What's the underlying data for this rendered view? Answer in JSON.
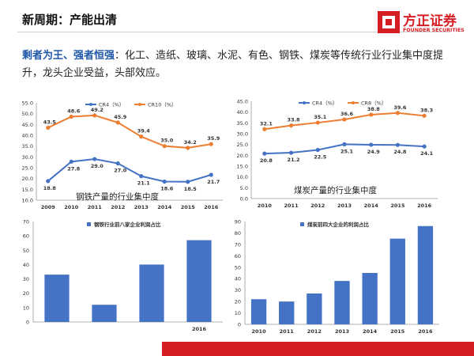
{
  "header": {
    "title": "新周期：产能出清"
  },
  "logo": {
    "cn": "方正证券",
    "en": "FOUNDER SECURITIES"
  },
  "paragraph": {
    "keyword": "剩者为王、强者恒强",
    "text": "：化工、造纸、玻璃、水泥、有色、钢铁、煤炭等传统行业行业集中度提升，龙头企业受益，头部效应。"
  },
  "colors": {
    "cr_low": "#4472c4",
    "cr_high": "#ed7d31",
    "bar": "#4472c4",
    "brand": "#d71d24"
  },
  "chart_data": [
    {
      "type": "line",
      "title": "",
      "caption": "钢铁产量的行业集中度",
      "categories": [
        "2009",
        "2010",
        "2011",
        "2012",
        "2013",
        "2014",
        "2015",
        "2016"
      ],
      "ylim": [
        10,
        55
      ],
      "yticks": [
        "10.0",
        "15.0",
        "20.0",
        "25.0",
        "30.0",
        "35.0",
        "40.0",
        "45.0",
        "50.0",
        "55.0"
      ],
      "legend_position": "top",
      "series": [
        {
          "name": "CR4（%）",
          "values": [
            18.8,
            27.8,
            29.0,
            27.0,
            21.1,
            18.6,
            18.5,
            21.7
          ],
          "labels": [
            "18.8",
            "27.8",
            "29.0",
            "27.0",
            "21.1",
            "18.6",
            "18.5",
            "21.7"
          ]
        },
        {
          "name": "CR10（%）",
          "values": [
            43.5,
            48.6,
            49.2,
            45.9,
            39.4,
            35.0,
            34.2,
            35.9
          ],
          "labels": [
            "43.5",
            "48.6",
            "49.2",
            "45.9",
            "39.4",
            "35.0",
            "34.2",
            "35.9"
          ]
        }
      ]
    },
    {
      "type": "line",
      "title": "",
      "caption": "煤炭产量的行业集中度",
      "categories": [
        "2010",
        "2011",
        "2012",
        "2013",
        "2014",
        "2015",
        "2016"
      ],
      "ylim": [
        0,
        45
      ],
      "yticks": [
        "0.0",
        "5.0",
        "10.0",
        "15.0",
        "20.0",
        "25.0",
        "30.0",
        "35.0",
        "40.0",
        "45.0"
      ],
      "legend_position": "top",
      "series": [
        {
          "name": "CR4（%）",
          "values": [
            20.8,
            21.2,
            22.5,
            25.1,
            24.9,
            24.8,
            24.1
          ],
          "labels": [
            "20.8",
            "21.2",
            "22.5",
            "25.1",
            "24.9",
            "24.8",
            "24.1"
          ]
        },
        {
          "name": "CR8（%）",
          "values": [
            32.1,
            33.8,
            35.1,
            36.6,
            38.8,
            39.6,
            38.3
          ],
          "labels": [
            "32.1",
            "33.8",
            "35.1",
            "36.6",
            "38.8",
            "39.6",
            "38.3"
          ]
        }
      ]
    },
    {
      "type": "bar",
      "title": "钢铁行业前八家企业利润占比",
      "categories": [
        "",
        "",
        "",
        "2016"
      ],
      "ylim": [
        0,
        70
      ],
      "yticks": [
        "0",
        "10",
        "20",
        "30",
        "40",
        "50",
        "60",
        "70"
      ],
      "values": [
        33,
        12,
        40,
        57
      ]
    },
    {
      "type": "bar",
      "title": "煤炭前四大企业的利润占比",
      "categories": [
        "2010",
        "2011",
        "2012",
        "2013",
        "2014",
        "2015",
        "2016"
      ],
      "ylim": [
        0,
        90
      ],
      "yticks": [
        "0",
        "10",
        "20",
        "30",
        "40",
        "50",
        "60",
        "70",
        "80",
        "90"
      ],
      "values": [
        22,
        20,
        27,
        38,
        45,
        75,
        86
      ]
    }
  ]
}
